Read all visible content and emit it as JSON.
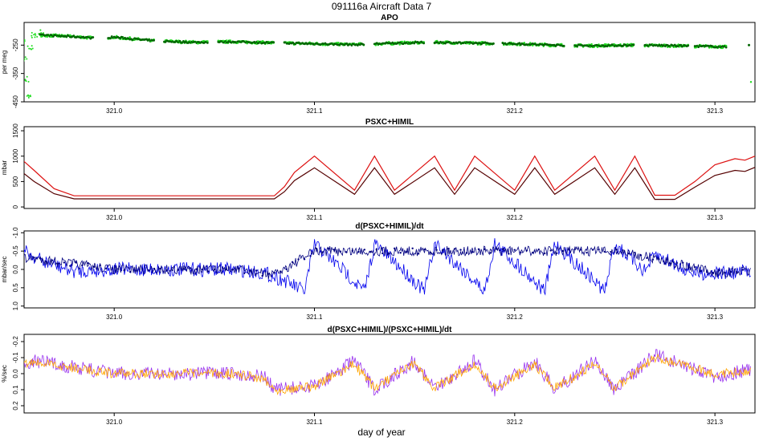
{
  "title": "091116a    Aircraft Data 7",
  "xlabel": "day of year",
  "colors": {
    "apo_light": "#22dd22",
    "apo_dark": "#006400",
    "psxc_upper": "#dd1111",
    "psxc_lower": "#550000",
    "deriv_main": "#0000ee",
    "deriv_smooth": "#000080",
    "rel_light": "#9933ee",
    "rel_main": "#ffa500"
  },
  "chart_data": [
    {
      "type": "scatter",
      "title": "APO",
      "ylabel": "per meg",
      "ylim": [
        -450,
        -170
      ],
      "yticks": [
        "-250",
        "-350",
        "-450"
      ],
      "ytick_values": [
        -250,
        -350,
        -450
      ],
      "xlim": [
        320.955,
        321.32
      ],
      "xticks": [
        "321.0",
        "321.1",
        "321.2",
        "321.3"
      ],
      "xtick_values": [
        321.0,
        321.1,
        321.2,
        321.3
      ],
      "series": [
        {
          "color_key": "apo_light",
          "x": [
            320.952,
            320.953,
            320.954,
            320.955,
            320.956,
            320.957,
            320.958,
            320.96,
            320.962,
            320.965
          ],
          "y": [
            -195,
            -210,
            -240,
            -300,
            -370,
            -430,
            -260,
            -215,
            -205,
            -215
          ]
        },
        {
          "color_key": "apo_dark",
          "x": [
            320.965,
            320.98,
            320.99,
            321.0,
            321.02,
            321.04,
            321.06,
            321.08,
            321.1,
            321.12,
            321.14,
            321.16,
            321.18,
            321.2,
            321.22,
            321.24,
            321.26,
            321.28,
            321.3,
            321.315
          ],
          "y": [
            -215,
            -220,
            -225,
            -222,
            -235,
            -240,
            -238,
            -242,
            -245,
            -248,
            -243,
            -240,
            -243,
            -245,
            -250,
            -252,
            -250,
            -252,
            -255,
            -258
          ]
        }
      ]
    },
    {
      "type": "line",
      "title": "PSXC+HIMIL",
      "ylabel": "mbar",
      "ylim": [
        -30,
        1580
      ],
      "yticks": [
        "0",
        "500",
        "1000",
        "1500"
      ],
      "ytick_values": [
        0,
        500,
        1000,
        1500
      ],
      "xlim": [
        320.955,
        321.32
      ],
      "xticks": [
        "321.0",
        "321.1",
        "321.2",
        "321.3"
      ],
      "xtick_values": [
        321.0,
        321.1,
        321.2,
        321.3
      ],
      "series": [
        {
          "color_key": "psxc_upper",
          "x": [
            320.952,
            320.96,
            320.97,
            320.98,
            321.0,
            321.03,
            321.06,
            321.08,
            321.085,
            321.09,
            321.1,
            321.12,
            321.13,
            321.14,
            321.16,
            321.17,
            321.18,
            321.2,
            321.21,
            321.22,
            321.24,
            321.25,
            321.26,
            321.27,
            321.28,
            321.29,
            321.3,
            321.31,
            321.315,
            321.32
          ],
          "y": [
            1000,
            720,
            360,
            220,
            220,
            220,
            220,
            220,
            400,
            680,
            1000,
            330,
            1000,
            330,
            1000,
            330,
            1000,
            330,
            1000,
            330,
            1000,
            330,
            1000,
            230,
            230,
            500,
            830,
            950,
            920,
            1000
          ]
        },
        {
          "color_key": "psxc_lower",
          "x": [
            320.952,
            320.96,
            320.97,
            320.98,
            321.0,
            321.03,
            321.06,
            321.08,
            321.085,
            321.09,
            321.1,
            321.12,
            321.13,
            321.14,
            321.16,
            321.17,
            321.18,
            321.2,
            321.21,
            321.22,
            321.24,
            321.25,
            321.26,
            321.27,
            321.28,
            321.29,
            321.3,
            321.31,
            321.315,
            321.32
          ],
          "y": [
            750,
            500,
            260,
            160,
            160,
            160,
            160,
            160,
            300,
            520,
            770,
            250,
            770,
            250,
            770,
            250,
            770,
            250,
            770,
            250,
            770,
            250,
            770,
            150,
            150,
            390,
            620,
            720,
            700,
            780
          ]
        }
      ]
    },
    {
      "type": "line",
      "title": "d(PSXC+HIMIL)/dt",
      "ylabel": "mbar/sec",
      "ylim": [
        1.05,
        -1.05
      ],
      "yticks": [
        "1.0",
        "0.5",
        "0.0",
        "-0.5",
        "-1.0"
      ],
      "ytick_values": [
        1.0,
        0.5,
        0.0,
        -0.5,
        -1.0
      ],
      "xlim": [
        320.955,
        321.32
      ],
      "xticks": [
        "321.0",
        "321.1",
        "321.2",
        "321.3"
      ],
      "xtick_values": [
        321.0,
        321.1,
        321.2,
        321.3
      ],
      "series": [
        {
          "color_key": "deriv_main",
          "x": [
            320.952,
            320.955,
            320.965,
            320.98,
            321.0,
            321.03,
            321.06,
            321.075,
            321.085,
            321.095,
            321.1,
            321.115,
            321.125,
            321.13,
            321.145,
            321.155,
            321.16,
            321.175,
            321.185,
            321.19,
            321.205,
            321.215,
            321.22,
            321.235,
            321.245,
            321.25,
            321.265,
            321.27,
            321.29,
            321.31,
            321.32
          ],
          "y": [
            -0.8,
            -0.5,
            -0.2,
            0.05,
            0.0,
            0.0,
            0.0,
            0.1,
            0.3,
            0.6,
            -0.7,
            0.05,
            0.6,
            -0.7,
            0.05,
            0.6,
            -0.7,
            0.05,
            0.6,
            -0.7,
            0.05,
            0.6,
            -0.7,
            0.05,
            0.6,
            -0.7,
            0.05,
            -0.4,
            0.1,
            0.1,
            0.0
          ]
        },
        {
          "color_key": "deriv_smooth",
          "x": [
            320.96,
            321.0,
            321.06,
            321.08,
            321.1,
            321.13,
            321.16,
            321.19,
            321.22,
            321.25,
            321.27,
            321.3,
            321.315
          ],
          "y": [
            -0.3,
            0.0,
            0.0,
            0.15,
            -0.5,
            -0.5,
            -0.5,
            -0.5,
            -0.5,
            -0.5,
            -0.3,
            0.1,
            0.05
          ]
        }
      ]
    },
    {
      "type": "line",
      "title": "d(PSXC+HIMIL)/(PSXC+HIMIL)/dt",
      "ylabel": "%/sec",
      "ylim": [
        0.245,
        -0.245
      ],
      "yticks": [
        "0.2",
        "0.1",
        "0.0",
        "-0.1",
        "-0.2"
      ],
      "ytick_values": [
        0.2,
        0.1,
        0.0,
        -0.1,
        -0.2
      ],
      "xlim": [
        320.955,
        321.32
      ],
      "xticks": [
        "321.0",
        "321.1",
        "321.2",
        "321.3"
      ],
      "xtick_values": [
        321.0,
        321.1,
        321.2,
        321.3
      ],
      "series": [
        {
          "color_key": "rel_light",
          "x": [
            320.952,
            320.96,
            321.0,
            321.06,
            321.075,
            321.08,
            321.1,
            321.12,
            321.13,
            321.15,
            321.16,
            321.18,
            321.19,
            321.21,
            321.22,
            321.24,
            321.25,
            321.27,
            321.3,
            321.315
          ],
          "y": [
            -0.06,
            -0.08,
            0.0,
            0.0,
            0.02,
            0.1,
            0.08,
            -0.08,
            0.1,
            -0.08,
            0.1,
            -0.08,
            0.1,
            -0.08,
            0.1,
            -0.08,
            0.1,
            -0.12,
            0.02,
            -0.02
          ]
        },
        {
          "color_key": "rel_main",
          "x": [
            320.952,
            320.96,
            321.0,
            321.06,
            321.075,
            321.08,
            321.1,
            321.12,
            321.13,
            321.15,
            321.16,
            321.18,
            321.19,
            321.21,
            321.22,
            321.24,
            321.25,
            321.27,
            321.3,
            321.315
          ],
          "y": [
            -0.05,
            -0.07,
            0.0,
            0.0,
            0.03,
            0.1,
            0.08,
            -0.06,
            0.09,
            -0.06,
            0.09,
            -0.06,
            0.09,
            -0.06,
            0.09,
            -0.06,
            0.09,
            -0.1,
            0.0,
            -0.01
          ]
        }
      ]
    }
  ]
}
